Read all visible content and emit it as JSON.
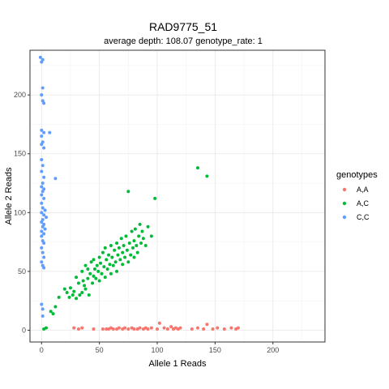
{
  "chart_data": {
    "type": "scatter",
    "title": "RAD9775_51",
    "subtitle": "average depth:  108.07  genotype_rate:  1",
    "xlabel": "Allele 1 Reads",
    "ylabel": "Allele 2 Reads",
    "xlim": [
      -10,
      245
    ],
    "ylim": [
      -10,
      238
    ],
    "xticks": [
      0,
      50,
      100,
      150,
      200
    ],
    "yticks": [
      0,
      50,
      100,
      150,
      200
    ],
    "xminor": [
      25,
      75,
      125,
      175,
      225
    ],
    "yminor": [
      25,
      75,
      125,
      175,
      225
    ],
    "grid": true,
    "legend": {
      "title": "genotypes",
      "placement": "right"
    },
    "series": [
      {
        "name": "A,A",
        "color": "#F8766D",
        "points": [
          [
            28,
            2
          ],
          [
            32,
            1
          ],
          [
            35,
            2
          ],
          [
            45,
            1
          ],
          [
            53,
            1
          ],
          [
            56,
            1
          ],
          [
            58,
            1
          ],
          [
            60,
            2
          ],
          [
            62,
            1
          ],
          [
            65,
            1
          ],
          [
            67,
            2
          ],
          [
            70,
            1
          ],
          [
            72,
            2
          ],
          [
            75,
            1
          ],
          [
            78,
            2
          ],
          [
            80,
            1
          ],
          [
            83,
            1
          ],
          [
            85,
            2
          ],
          [
            88,
            1
          ],
          [
            90,
            2
          ],
          [
            92,
            1
          ],
          [
            95,
            2
          ],
          [
            100,
            1
          ],
          [
            102,
            6
          ],
          [
            106,
            2
          ],
          [
            109,
            1
          ],
          [
            112,
            3
          ],
          [
            114,
            1
          ],
          [
            116,
            2
          ],
          [
            118,
            1
          ],
          [
            120,
            2
          ],
          [
            130,
            1
          ],
          [
            135,
            2
          ],
          [
            140,
            1
          ],
          [
            143,
            5
          ],
          [
            148,
            1
          ],
          [
            152,
            2
          ],
          [
            158,
            1
          ],
          [
            164,
            2
          ],
          [
            168,
            1
          ],
          [
            170,
            2
          ]
        ]
      },
      {
        "name": "A,C",
        "color": "#00BA38",
        "points": [
          [
            2,
            1
          ],
          [
            4,
            2
          ],
          [
            8,
            16
          ],
          [
            10,
            14
          ],
          [
            12,
            20
          ],
          [
            15,
            28
          ],
          [
            20,
            35
          ],
          [
            22,
            32
          ],
          [
            24,
            28
          ],
          [
            25,
            36
          ],
          [
            27,
            30
          ],
          [
            28,
            33
          ],
          [
            30,
            27
          ],
          [
            30,
            45
          ],
          [
            32,
            40
          ],
          [
            33,
            30
          ],
          [
            35,
            32
          ],
          [
            35,
            50
          ],
          [
            36,
            42
          ],
          [
            37,
            38
          ],
          [
            38,
            35
          ],
          [
            38,
            55
          ],
          [
            40,
            44
          ],
          [
            40,
            52
          ],
          [
            41,
            30
          ],
          [
            42,
            48
          ],
          [
            43,
            58
          ],
          [
            44,
            40
          ],
          [
            45,
            46
          ],
          [
            45,
            60
          ],
          [
            46,
            52
          ],
          [
            47,
            44
          ],
          [
            48,
            55
          ],
          [
            49,
            50
          ],
          [
            50,
            42
          ],
          [
            50,
            62
          ],
          [
            51,
            57
          ],
          [
            52,
            48
          ],
          [
            53,
            66
          ],
          [
            54,
            54
          ],
          [
            55,
            45
          ],
          [
            55,
            70
          ],
          [
            56,
            60
          ],
          [
            57,
            52
          ],
          [
            58,
            64
          ],
          [
            59,
            56
          ],
          [
            60,
            48
          ],
          [
            60,
            72
          ],
          [
            61,
            62
          ],
          [
            62,
            55
          ],
          [
            63,
            68
          ],
          [
            64,
            58
          ],
          [
            65,
            74
          ],
          [
            65,
            50
          ],
          [
            66,
            64
          ],
          [
            67,
            70
          ],
          [
            68,
            60
          ],
          [
            69,
            78
          ],
          [
            70,
            66
          ],
          [
            70,
            56
          ],
          [
            71,
            72
          ],
          [
            72,
            62
          ],
          [
            73,
            80
          ],
          [
            74,
            68
          ],
          [
            75,
            58
          ],
          [
            75,
            118
          ],
          [
            76,
            74
          ],
          [
            77,
            64
          ],
          [
            78,
            84
          ],
          [
            79,
            70
          ],
          [
            80,
            76
          ],
          [
            80,
            62
          ],
          [
            81,
            86
          ],
          [
            82,
            72
          ],
          [
            83,
            66
          ],
          [
            84,
            80
          ],
          [
            85,
            90
          ],
          [
            86,
            74
          ],
          [
            87,
            84
          ],
          [
            88,
            78
          ],
          [
            90,
            72
          ],
          [
            92,
            88
          ],
          [
            95,
            80
          ],
          [
            98,
            112
          ],
          [
            135,
            138
          ],
          [
            143,
            131
          ]
        ]
      },
      {
        "name": "C,C",
        "color": "#619CFF",
        "points": [
          [
            -1,
            232
          ],
          [
            1,
            230
          ],
          [
            0,
            228
          ],
          [
            1,
            206
          ],
          [
            0,
            200
          ],
          [
            1,
            195
          ],
          [
            2,
            193
          ],
          [
            0,
            170
          ],
          [
            2,
            168
          ],
          [
            0,
            165
          ],
          [
            1,
            160
          ],
          [
            0,
            158
          ],
          [
            2,
            155
          ],
          [
            7,
            168
          ],
          [
            12,
            129
          ],
          [
            0,
            145
          ],
          [
            1,
            140
          ],
          [
            0,
            135
          ],
          [
            2,
            130
          ],
          [
            1,
            125
          ],
          [
            0,
            122
          ],
          [
            2,
            120
          ],
          [
            1,
            118
          ],
          [
            0,
            115
          ],
          [
            2,
            112
          ],
          [
            0,
            108
          ],
          [
            1,
            104
          ],
          [
            3,
            102
          ],
          [
            0,
            100
          ],
          [
            2,
            98
          ],
          [
            4,
            96
          ],
          [
            1,
            94
          ],
          [
            0,
            92
          ],
          [
            2,
            90
          ],
          [
            1,
            88
          ],
          [
            3,
            86
          ],
          [
            0,
            84
          ],
          [
            2,
            82
          ],
          [
            0,
            80
          ],
          [
            1,
            76
          ],
          [
            2,
            74
          ],
          [
            0,
            70
          ],
          [
            1,
            66
          ],
          [
            2,
            62
          ],
          [
            0,
            58
          ],
          [
            1,
            55
          ],
          [
            2,
            53
          ],
          [
            0,
            22
          ],
          [
            1,
            18
          ],
          [
            1,
            12
          ]
        ]
      }
    ]
  }
}
